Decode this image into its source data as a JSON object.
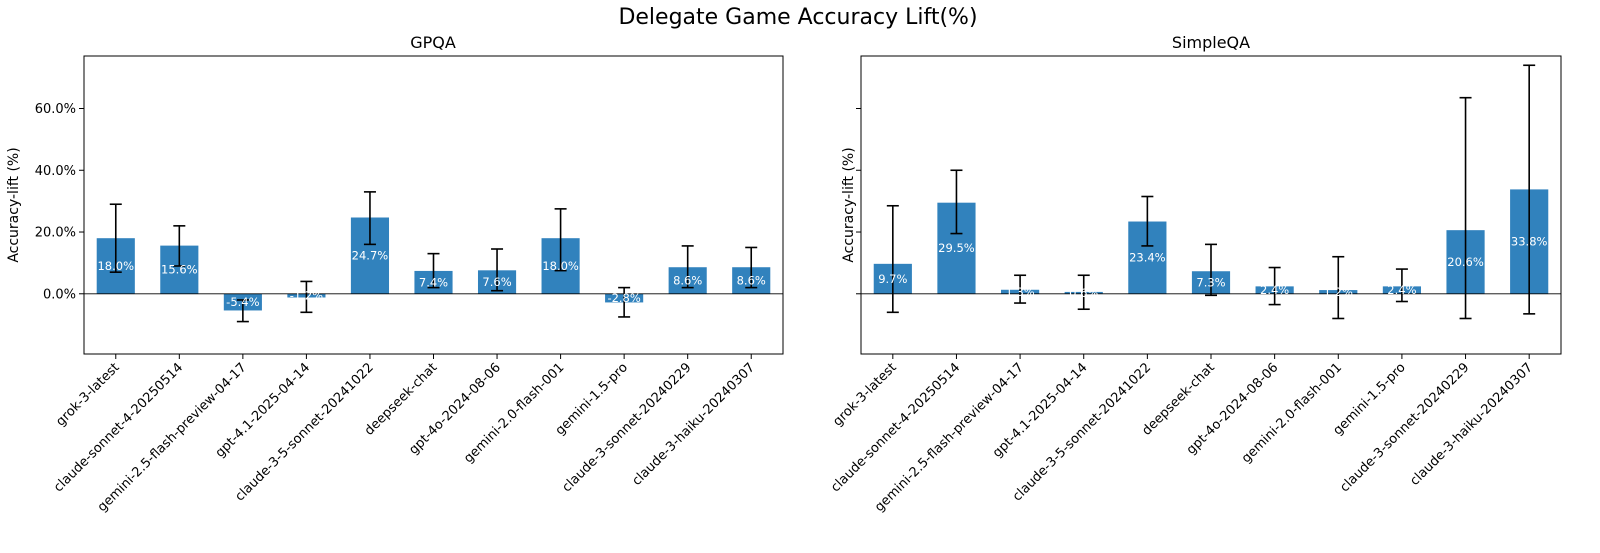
{
  "title": "Delegate Game Accuracy Lift(%)",
  "colors": {
    "bar": "#3182bd",
    "error_bar": "#000000",
    "axis": "#000000",
    "label": "#ffffff"
  },
  "chart_data": [
    {
      "type": "bar",
      "title": "GPQA",
      "xlabel": "",
      "ylabel": "Accuracy-lift (%)",
      "ylim": [
        -19.5,
        77
      ],
      "yticks": [
        0,
        20,
        40,
        60
      ],
      "ytick_labels": [
        "0.0%",
        "20.0%",
        "40.0%",
        "60.0%"
      ],
      "zero_line": true,
      "grid": false,
      "categories": [
        "grok-3-latest",
        "claude-sonnet-4-20250514",
        "gemini-2.5-flash-preview-04-17",
        "gpt-4.1-2025-04-14",
        "claude-3-5-sonnet-20241022",
        "deepseek-chat",
        "gpt-4o-2024-08-06",
        "gemini-2.0-flash-001",
        "gemini-1.5-pro",
        "claude-3-sonnet-20240229",
        "claude-3-haiku-20240307"
      ],
      "values": [
        18.0,
        15.6,
        -5.4,
        -1.2,
        24.7,
        7.4,
        7.6,
        18.0,
        -2.8,
        8.6,
        8.6
      ],
      "data_labels": [
        "18.0%",
        "15.6%",
        "-5.4%",
        "-1.2%",
        "24.7%",
        "7.4%",
        "7.6%",
        "18.0%",
        "-2.8%",
        "8.6%",
        "8.6%"
      ],
      "error_low": [
        7.0,
        9.0,
        -9.0,
        -6.0,
        16.0,
        2.0,
        1.0,
        7.5,
        -7.5,
        2.0,
        2.0
      ],
      "error_high": [
        29.0,
        22.0,
        -2.0,
        4.0,
        33.0,
        13.0,
        14.5,
        27.5,
        2.0,
        15.5,
        15.0
      ]
    },
    {
      "type": "bar",
      "title": "SimpleQA",
      "xlabel": "",
      "ylabel": "Accuracy-lift (%)",
      "ylim": [
        -19.5,
        77
      ],
      "yticks": [
        0,
        20,
        40,
        60
      ],
      "ytick_labels": [],
      "zero_line": true,
      "grid": false,
      "categories": [
        "grok-3-latest",
        "claude-sonnet-4-20250514",
        "gemini-2.5-flash-preview-04-17",
        "gpt-4.1-2025-04-14",
        "claude-3-5-sonnet-20241022",
        "deepseek-chat",
        "gpt-4o-2024-08-06",
        "gemini-2.0-flash-001",
        "gemini-1.5-pro",
        "claude-3-sonnet-20240229",
        "claude-3-haiku-20240307"
      ],
      "values": [
        9.7,
        29.5,
        1.3,
        0.6,
        23.4,
        7.3,
        2.4,
        1.2,
        2.4,
        20.6,
        33.8
      ],
      "data_labels": [
        "9.7%",
        "29.5%",
        "1.3%",
        "0.6%",
        "23.4%",
        "7.3%",
        "2.4%",
        "1.2%",
        "2.4%",
        "20.6%",
        "33.8%"
      ],
      "error_low": [
        -6.0,
        19.5,
        -3.0,
        -5.0,
        15.5,
        -0.5,
        -3.5,
        -8.0,
        -2.5,
        -8.0,
        -6.5
      ],
      "error_high": [
        28.5,
        40.0,
        6.0,
        6.0,
        31.5,
        16.0,
        8.5,
        12.0,
        8.0,
        63.5,
        74.0
      ]
    }
  ]
}
